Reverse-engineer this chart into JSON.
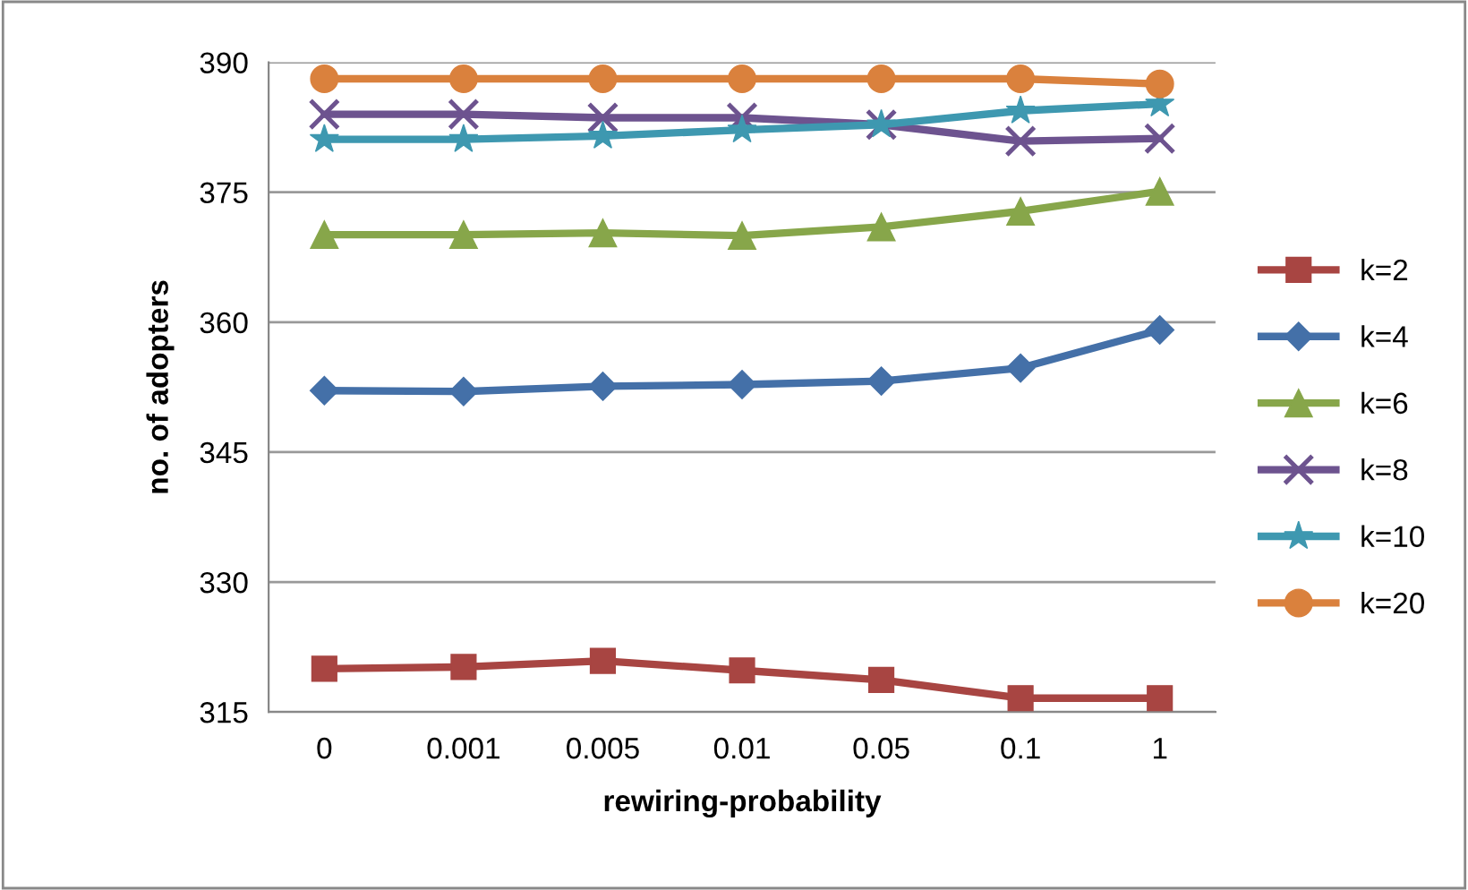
{
  "chart_data": {
    "type": "line",
    "xlabel": "rewiring-probability",
    "ylabel": "no. of adopters",
    "categories": [
      "0",
      "0.001",
      "0.005",
      "0.01",
      "0.05",
      "0.1",
      "1"
    ],
    "ylim": [
      315,
      390
    ],
    "yticks": [
      315,
      330,
      345,
      360,
      375,
      390
    ],
    "grid": "y",
    "legend": "right",
    "series": [
      {
        "name": "k=2",
        "color": "#a84542",
        "marker": "square",
        "values": [
          320.0,
          320.2,
          320.9,
          319.8,
          318.7,
          316.6,
          316.6
        ]
      },
      {
        "name": "k=4",
        "color": "#4470a8",
        "marker": "diamond",
        "values": [
          352.1,
          352.0,
          352.6,
          352.8,
          353.2,
          354.7,
          359.1
        ]
      },
      {
        "name": "k=6",
        "color": "#87a64a",
        "marker": "triangle",
        "values": [
          370.1,
          370.1,
          370.3,
          370.0,
          371.0,
          372.8,
          375.1
        ]
      },
      {
        "name": "k=8",
        "color": "#6d538f",
        "marker": "cross",
        "values": [
          384.0,
          384.0,
          383.6,
          383.6,
          382.8,
          380.9,
          381.2
        ]
      },
      {
        "name": "k=10",
        "color": "#3e98b0",
        "marker": "star",
        "values": [
          381.1,
          381.1,
          381.5,
          382.2,
          382.8,
          384.4,
          385.2
        ]
      },
      {
        "name": "k=20",
        "color": "#da813d",
        "marker": "circle",
        "values": [
          388.1,
          388.1,
          388.1,
          388.1,
          388.1,
          388.1,
          387.5
        ]
      }
    ]
  }
}
